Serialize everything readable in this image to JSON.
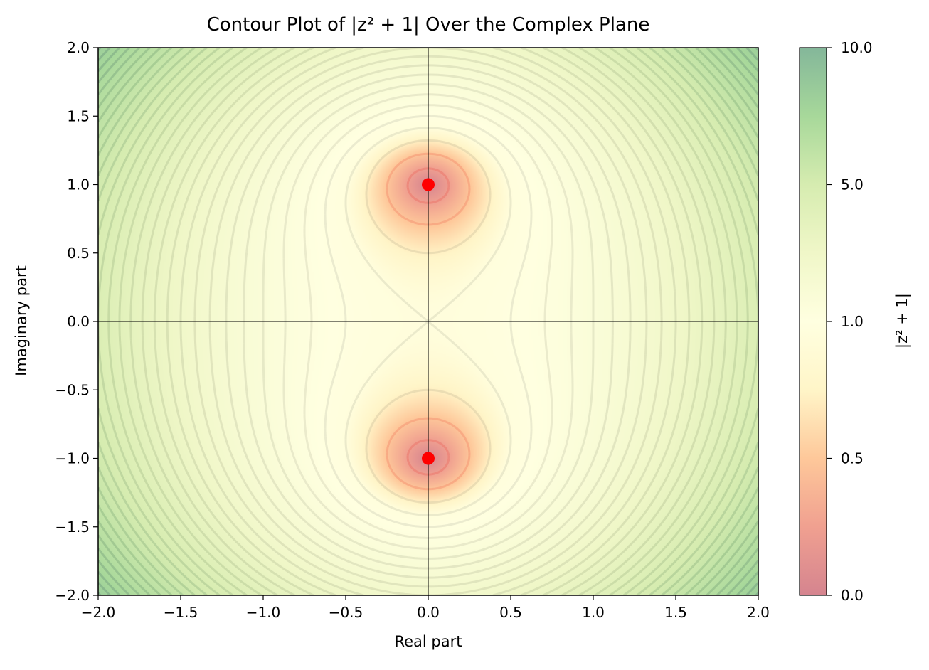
{
  "chart_data": {
    "type": "heatmap",
    "title": "Contour Plot of |z² + 1| Over the Complex Plane",
    "xlabel": "Real part",
    "ylabel": "Imaginary part",
    "xlim": [
      -2.0,
      2.0
    ],
    "ylim": [
      -2.0,
      2.0
    ],
    "x_ticks": [
      "−2.0",
      "−1.5",
      "−1.0",
      "−0.5",
      "0.0",
      "0.5",
      "1.0",
      "1.5",
      "2.0"
    ],
    "y_ticks": [
      "−2.0",
      "−1.5",
      "−1.0",
      "−0.5",
      "0.0",
      "0.5",
      "1.0",
      "1.5",
      "2.0"
    ],
    "function": "|z^2 + 1|",
    "contour_step": 0.25,
    "zeros": [
      {
        "re": 0.0,
        "im": 1.0
      },
      {
        "re": 0.0,
        "im": -1.0
      }
    ],
    "colorbar": {
      "label": "|z² + 1|",
      "ticks": [
        "0.0",
        "0.5",
        "1.0",
        "5.0",
        "10.0"
      ],
      "range": [
        0.0,
        10.0
      ],
      "colormap": [
        "#d5848f",
        "#f0a090",
        "#fec89a",
        "#fff5c8",
        "#ffffe0",
        "#f0f7c8",
        "#d6ecb0",
        "#a7d89a",
        "#84b79a"
      ]
    },
    "grid": false,
    "axes_lines_at_zero": true
  }
}
